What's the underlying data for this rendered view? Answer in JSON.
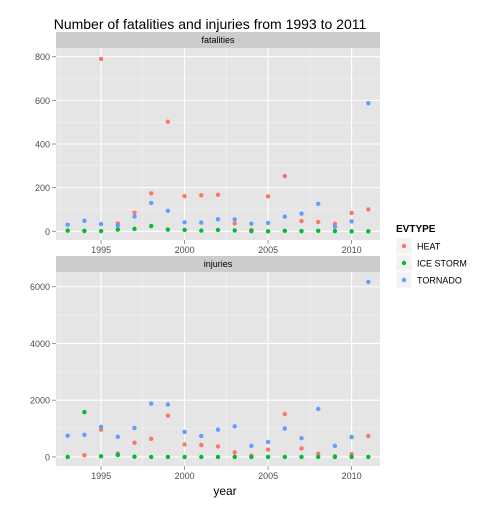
{
  "chart_data": {
    "type": "scatter",
    "title": "Number of fatalities and injuries from 1993 to 2011",
    "xlabel": "year",
    "ylabel": "",
    "legend": {
      "title": "EVTYPE",
      "placement": "right",
      "entries": [
        {
          "name": "HEAT",
          "color": "#F8766D"
        },
        {
          "name": "ICE STORM",
          "color": "#00BA38"
        },
        {
          "name": "TORNADO",
          "color": "#619CFF"
        }
      ]
    },
    "x_ticks": [
      "1995",
      "2000",
      "2005",
      "2010"
    ],
    "xlim": [
      1992.3,
      2011.7
    ],
    "grid": true,
    "panels": [
      {
        "label": "fatalities",
        "ylim": [
          -40,
          840
        ],
        "y_ticks": [
          "0",
          "200",
          "400",
          "600",
          "800"
        ],
        "series": [
          {
            "name": "HEAT",
            "color": "#F8766D",
            "points": [
              [
                1994,
                1
              ],
              [
                1995,
                790
              ],
              [
                1996,
                36
              ],
              [
                1997,
                85
              ],
              [
                1998,
                174
              ],
              [
                1999,
                502
              ],
              [
                2000,
                161
              ],
              [
                2001,
                165
              ],
              [
                2002,
                167
              ],
              [
                2003,
                36
              ],
              [
                2004,
                6
              ],
              [
                2005,
                160
              ],
              [
                2006,
                253
              ],
              [
                2007,
                47
              ],
              [
                2008,
                43
              ],
              [
                2009,
                34
              ],
              [
                2010,
                84
              ],
              [
                2011,
                100
              ]
            ]
          },
          {
            "name": "ICE STORM",
            "color": "#00BA38",
            "points": [
              [
                1993,
                3
              ],
              [
                1994,
                2
              ],
              [
                1995,
                1
              ],
              [
                1996,
                8
              ],
              [
                1997,
                11
              ],
              [
                1998,
                24
              ],
              [
                1999,
                8
              ],
              [
                2000,
                6
              ],
              [
                2001,
                3
              ],
              [
                2002,
                6
              ],
              [
                2003,
                4
              ],
              [
                2004,
                1
              ],
              [
                2005,
                0
              ],
              [
                2006,
                2
              ],
              [
                2007,
                1
              ],
              [
                2008,
                2
              ],
              [
                2009,
                1
              ],
              [
                2010,
                0
              ],
              [
                2011,
                0
              ]
            ]
          },
          {
            "name": "TORNADO",
            "color": "#619CFF",
            "points": [
              [
                1993,
                30
              ],
              [
                1994,
                48
              ],
              [
                1995,
                33
              ],
              [
                1996,
                26
              ],
              [
                1997,
                68
              ],
              [
                1998,
                130
              ],
              [
                1999,
                94
              ],
              [
                2000,
                41
              ],
              [
                2001,
                40
              ],
              [
                2002,
                55
              ],
              [
                2003,
                54
              ],
              [
                2004,
                35
              ],
              [
                2005,
                38
              ],
              [
                2006,
                67
              ],
              [
                2007,
                81
              ],
              [
                2008,
                126
              ],
              [
                2009,
                21
              ],
              [
                2010,
                45
              ],
              [
                2011,
                587
              ]
            ]
          }
        ]
      },
      {
        "label": "injuries",
        "ylim": [
          -320,
          6520
        ],
        "y_ticks": [
          "0",
          "2000",
          "4000",
          "6000"
        ],
        "series": [
          {
            "name": "HEAT",
            "color": "#F8766D",
            "points": [
              [
                1994,
                60
              ],
              [
                1995,
                960
              ],
              [
                1996,
                120
              ],
              [
                1997,
                500
              ],
              [
                1998,
                640
              ],
              [
                1999,
                1460
              ],
              [
                2000,
                440
              ],
              [
                2001,
                420
              ],
              [
                2002,
                370
              ],
              [
                2003,
                160
              ],
              [
                2004,
                40
              ],
              [
                2005,
                260
              ],
              [
                2006,
                1510
              ],
              [
                2007,
                300
              ],
              [
                2008,
                110
              ],
              [
                2009,
                20
              ],
              [
                2010,
                100
              ],
              [
                2011,
                740
              ]
            ]
          },
          {
            "name": "ICE STORM",
            "color": "#00BA38",
            "points": [
              [
                1993,
                0
              ],
              [
                1994,
                1580
              ],
              [
                1995,
                20
              ],
              [
                1996,
                70
              ],
              [
                1997,
                10
              ],
              [
                1998,
                0
              ],
              [
                1999,
                0
              ],
              [
                2000,
                0
              ],
              [
                2001,
                0
              ],
              [
                2002,
                0
              ],
              [
                2003,
                0
              ],
              [
                2004,
                0
              ],
              [
                2005,
                0
              ],
              [
                2006,
                0
              ],
              [
                2007,
                0
              ],
              [
                2008,
                0
              ],
              [
                2009,
                0
              ],
              [
                2010,
                0
              ],
              [
                2011,
                0
              ]
            ]
          },
          {
            "name": "TORNADO",
            "color": "#619CFF",
            "points": [
              [
                1993,
                750
              ],
              [
                1994,
                780
              ],
              [
                1995,
                1060
              ],
              [
                1996,
                710
              ],
              [
                1997,
                1020
              ],
              [
                1998,
                1880
              ],
              [
                1999,
                1850
              ],
              [
                2000,
                880
              ],
              [
                2001,
                740
              ],
              [
                2002,
                960
              ],
              [
                2003,
                1080
              ],
              [
                2004,
                390
              ],
              [
                2005,
                530
              ],
              [
                2006,
                1000
              ],
              [
                2007,
                660
              ],
              [
                2008,
                1690
              ],
              [
                2009,
                390
              ],
              [
                2010,
                700
              ],
              [
                2011,
                6170
              ]
            ]
          }
        ]
      }
    ]
  }
}
